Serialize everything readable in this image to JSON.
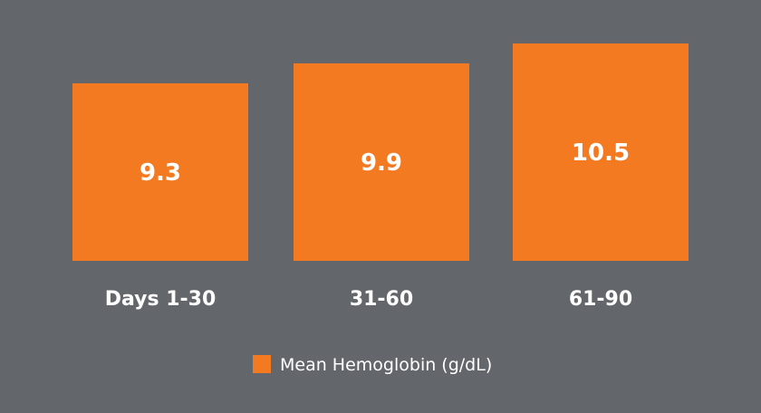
{
  "chart_data": {
    "type": "bar",
    "categories": [
      "Days 1-30",
      "31-60",
      "61-90"
    ],
    "series": [
      {
        "name": "Mean Hemoglobin (g/dL)",
        "values": [
          9.3,
          9.9,
          10.5
        ],
        "value_labels": [
          "9.3",
          "9.9",
          "10.5"
        ]
      }
    ],
    "title": "",
    "xlabel": "",
    "ylabel": "",
    "grid": false,
    "legend": "bottom-center",
    "colors": {
      "background": "#63666a",
      "bar": "#f47a22",
      "text": "#ffffff"
    }
  }
}
